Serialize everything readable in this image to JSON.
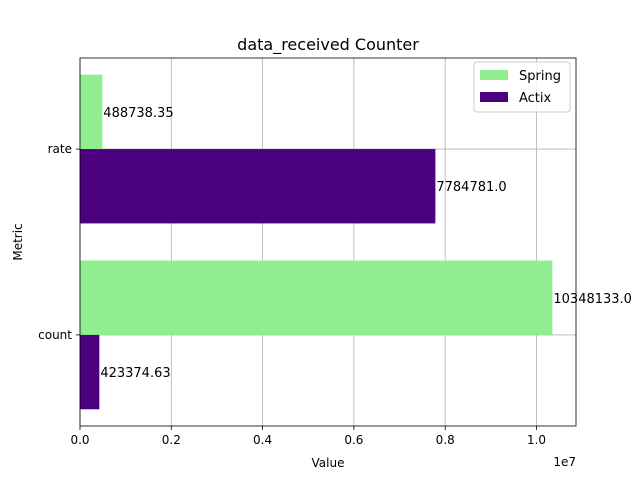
{
  "chart_data": {
    "type": "bar",
    "orientation": "horizontal",
    "title": "data_received Counter",
    "xlabel": "Value",
    "ylabel": "Metric",
    "x_offset_label": "1e7",
    "xlim": [
      0,
      10865539.65
    ],
    "x_ticks": [
      0,
      2000000,
      4000000,
      6000000,
      8000000,
      10000000
    ],
    "x_tick_labels": [
      "0.0",
      "0.2",
      "0.4",
      "0.6",
      "0.8",
      "1.0"
    ],
    "categories": [
      "rate",
      "count"
    ],
    "grid": true,
    "legend_position": "top-right",
    "series": [
      {
        "name": "Spring",
        "color": "#90ee90",
        "values": [
          488738.35,
          10348133.0
        ],
        "labels": [
          "488738.35",
          "10348133.0"
        ]
      },
      {
        "name": "Actix",
        "color": "#4b0080",
        "values": [
          7784781.0,
          423374.63
        ],
        "labels": [
          "7784781.0",
          "423374.63"
        ]
      }
    ]
  }
}
